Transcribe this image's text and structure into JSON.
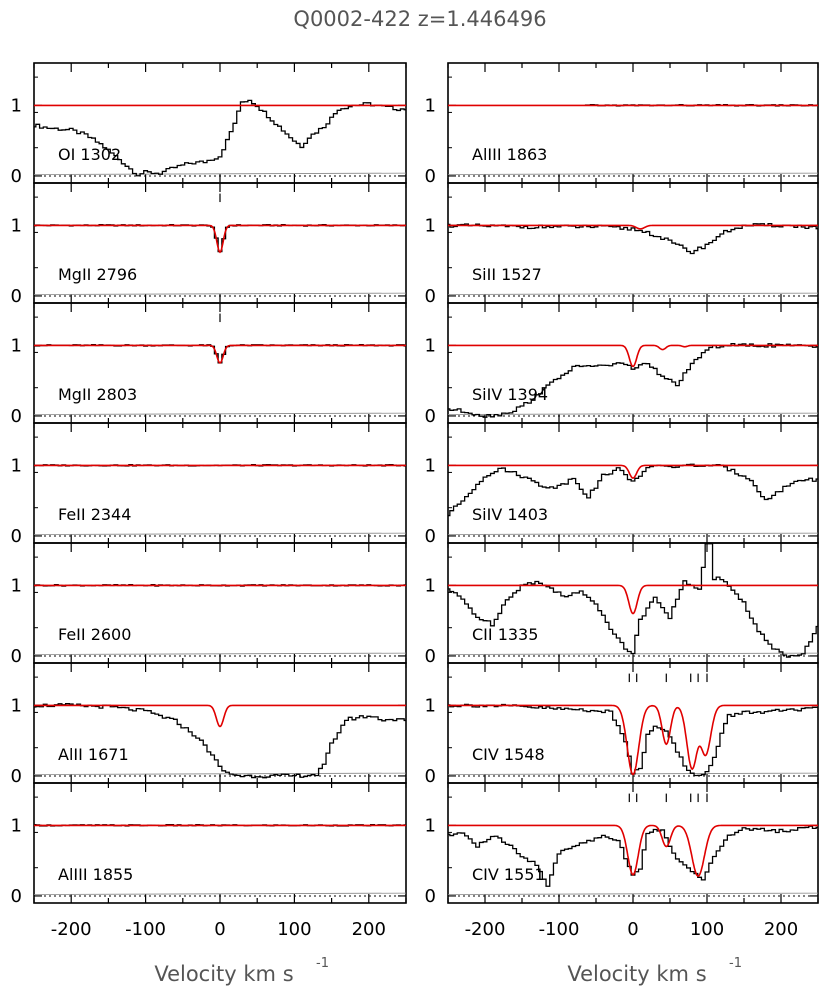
{
  "chart_data": {
    "type": "line",
    "title": "Q0002-422   z=1.446496",
    "xlabel": "Velocity  km  s",
    "xlabel_exponent": "-1",
    "xlim": [
      -250,
      250
    ],
    "ylim": [
      -0.1,
      1.6
    ],
    "x_ticks": [
      "-200",
      "-100",
      "0",
      "100",
      "200"
    ],
    "y_ticks": [
      "1",
      "0"
    ],
    "colors": {
      "data": "#000000",
      "model": "#e00000",
      "frame": "#000000"
    },
    "columns": [
      {
        "panels": [
          {
            "label": "OI  1302",
            "model_lines": [],
            "data_x": [
              -250,
              -230,
              -200,
              -180,
              -160,
              -140,
              -120,
              -110,
              -100,
              -80,
              -60,
              -40,
              -20,
              0,
              10,
              20,
              30,
              40,
              50,
              60,
              80,
              100,
              110,
              120,
              140,
              150,
              160,
              180,
              200,
              220,
              240,
              250
            ],
            "data_y": [
              0.72,
              0.68,
              0.65,
              0.58,
              0.45,
              0.28,
              0.1,
              0.02,
              0.05,
              0.04,
              0.12,
              0.18,
              0.2,
              0.28,
              0.5,
              0.75,
              1.05,
              1.08,
              1.0,
              0.9,
              0.7,
              0.5,
              0.42,
              0.55,
              0.7,
              0.82,
              0.95,
              1.0,
              1.02,
              0.98,
              0.95,
              0.95
            ]
          },
          {
            "label": "MgII  2796",
            "model_lines": [
              {
                "v": 0,
                "depth": 0.38,
                "b": 6
              }
            ],
            "tick_marks": [
              0
            ],
            "data_x": [],
            "data_y": []
          },
          {
            "label": "MgII  2803",
            "model_lines": [
              {
                "v": 0,
                "depth": 0.25,
                "b": 6
              }
            ],
            "tick_marks": [
              0
            ],
            "data_x": [],
            "data_y": []
          },
          {
            "label": "FeII  2344",
            "model_lines": [],
            "data_x": [],
            "data_y": []
          },
          {
            "label": "FeII  2600",
            "model_lines": [],
            "data_x": [],
            "data_y": []
          },
          {
            "label": "AlII  1671",
            "model_lines": [
              {
                "v": 0,
                "depth": 0.3,
                "b": 7
              }
            ],
            "data_x": [
              -250,
              -200,
              -150,
              -100,
              -60,
              -30,
              -10,
              0,
              10,
              30,
              60,
              100,
              130,
              140,
              150,
              170,
              200,
              220,
              240,
              250
            ],
            "data_y": [
              1.0,
              1.0,
              0.98,
              0.92,
              0.78,
              0.55,
              0.3,
              0.12,
              0.04,
              0.0,
              0.0,
              0.0,
              0.02,
              0.15,
              0.45,
              0.8,
              0.85,
              0.8,
              0.8,
              0.78
            ]
          },
          {
            "label": "AlIII  1855",
            "model_lines": [],
            "data_x": [],
            "data_y": []
          }
        ]
      },
      {
        "panels": [
          {
            "label": "AlIII  1863",
            "model_lines": [],
            "data_start": -65,
            "data_x": [],
            "data_y": []
          },
          {
            "label": "SiII  1527",
            "model_lines": [
              {
                "v": 10,
                "depth": 0.05,
                "b": 8
              }
            ],
            "data_x": [
              -250,
              -150,
              -50,
              0,
              20,
              40,
              60,
              80,
              100,
              120,
              140,
              160,
              200,
              250
            ],
            "data_y": [
              1.0,
              0.98,
              0.98,
              0.95,
              0.9,
              0.82,
              0.72,
              0.62,
              0.72,
              0.88,
              0.97,
              1.0,
              1.0,
              0.97
            ]
          },
          {
            "label": "SiIV  1394",
            "model_lines": [
              {
                "v": 0,
                "depth": 0.3,
                "b": 7
              },
              {
                "v": 40,
                "depth": 0.06,
                "b": 6
              },
              {
                "v": 70,
                "depth": 0.02,
                "b": 5
              }
            ],
            "data_x": [
              -250,
              -220,
              -200,
              -180,
              -160,
              -140,
              -120,
              -100,
              -80,
              -60,
              -40,
              -20,
              0,
              20,
              40,
              60,
              80,
              100,
              120,
              160,
              200,
              250
            ],
            "data_y": [
              0.1,
              0.05,
              0.0,
              0.02,
              0.08,
              0.2,
              0.38,
              0.55,
              0.68,
              0.72,
              0.7,
              0.75,
              0.68,
              0.75,
              0.55,
              0.45,
              0.72,
              0.95,
              1.0,
              1.0,
              1.0,
              0.98
            ]
          },
          {
            "label": "SiIV  1403",
            "model_lines": [
              {
                "v": 0,
                "depth": 0.18,
                "b": 7
              }
            ],
            "data_x": [
              -250,
              -230,
              -200,
              -180,
              -160,
              -140,
              -120,
              -100,
              -80,
              -60,
              -40,
              -20,
              0,
              20,
              40,
              60,
              80,
              100,
              120,
              140,
              160,
              180,
              200,
              220,
              240,
              250
            ],
            "data_y": [
              0.3,
              0.5,
              0.85,
              0.95,
              0.9,
              0.8,
              0.7,
              0.7,
              0.82,
              0.55,
              0.85,
              0.95,
              0.78,
              0.95,
              1.0,
              0.98,
              1.0,
              1.0,
              0.98,
              0.9,
              0.8,
              0.5,
              0.65,
              0.78,
              0.8,
              0.8
            ]
          },
          {
            "label": "CII  1335",
            "model_lines": [
              {
                "v": 0,
                "depth": 0.4,
                "b": 8
              }
            ],
            "data_x": [
              -250,
              -230,
              -210,
              -190,
              -170,
              -150,
              -130,
              -110,
              -90,
              -70,
              -50,
              -30,
              -10,
              0,
              10,
              30,
              50,
              70,
              90,
              100,
              105,
              110,
              115,
              130,
              150,
              170,
              190,
              210,
              230,
              245,
              250
            ],
            "data_y": [
              0.95,
              0.8,
              0.55,
              0.45,
              0.8,
              1.0,
              1.05,
              0.95,
              0.85,
              0.9,
              0.75,
              0.4,
              0.1,
              0.05,
              0.5,
              0.85,
              0.55,
              1.05,
              0.95,
              1.6,
              1.6,
              1.1,
              1.1,
              1.0,
              0.75,
              0.35,
              0.1,
              0.0,
              0.05,
              0.3,
              0.4
            ]
          },
          {
            "label": "CIV  1548",
            "model_lines": [
              {
                "v": 0,
                "depth": 0.98,
                "b": 11
              },
              {
                "v": 45,
                "depth": 0.55,
                "b": 8
              },
              {
                "v": 80,
                "depth": 0.9,
                "b": 10
              },
              {
                "v": 98,
                "depth": 0.7,
                "b": 10
              }
            ],
            "tick_marks": [
              -5,
              5,
              45,
              78,
              88,
              100
            ],
            "data_x": [
              -250,
              -200,
              -150,
              -100,
              -50,
              -30,
              -10,
              0,
              10,
              20,
              30,
              40,
              50,
              60,
              70,
              80,
              90,
              100,
              110,
              120,
              130,
              150,
              200,
              250
            ],
            "data_y": [
              1.0,
              1.0,
              0.98,
              0.95,
              0.93,
              0.9,
              0.5,
              0.05,
              0.1,
              0.6,
              0.72,
              0.68,
              0.55,
              0.35,
              0.15,
              0.05,
              0.0,
              0.05,
              0.25,
              0.6,
              0.85,
              0.9,
              0.92,
              0.95
            ]
          },
          {
            "label": "CIV  1551",
            "model_lines": [
              {
                "v": 0,
                "depth": 0.7,
                "b": 10
              },
              {
                "v": 45,
                "depth": 0.3,
                "b": 8
              },
              {
                "v": 88,
                "depth": 0.72,
                "b": 12
              }
            ],
            "tick_marks": [
              -5,
              5,
              45,
              78,
              88,
              100
            ],
            "data_x": [
              -250,
              -230,
              -210,
              -190,
              -170,
              -150,
              -130,
              -115,
              -100,
              -80,
              -60,
              -40,
              -20,
              -10,
              0,
              10,
              20,
              40,
              60,
              80,
              95,
              110,
              130,
              150,
              200,
              250
            ],
            "data_y": [
              0.85,
              0.9,
              0.7,
              0.85,
              0.75,
              0.55,
              0.45,
              0.15,
              0.6,
              0.7,
              0.78,
              0.85,
              0.8,
              0.55,
              0.3,
              0.38,
              0.9,
              0.95,
              0.5,
              0.35,
              0.25,
              0.55,
              0.85,
              0.95,
              0.92,
              0.98
            ]
          }
        ]
      }
    ]
  }
}
